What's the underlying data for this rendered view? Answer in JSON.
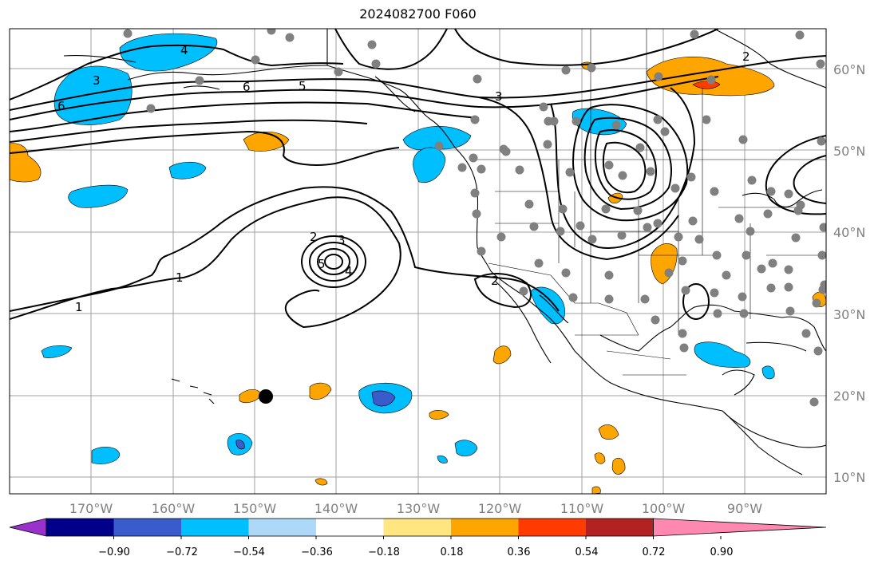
{
  "title": "2024082700 F060",
  "longitude_labels": [
    "170°W",
    "160°W",
    "150°W",
    "140°W",
    "130°W",
    "120°W",
    "110°W",
    "100°W",
    "90°W"
  ],
  "latitude_labels": [
    "60°N",
    "50°N",
    "40°N",
    "30°N",
    "20°N",
    "10°N"
  ],
  "colorbar": {
    "tick_labels": [
      "−0.90",
      "−0.72",
      "−0.54",
      "−0.36",
      "−0.18",
      "0.18",
      "0.36",
      "0.54",
      "0.72",
      "0.90"
    ],
    "colors": [
      "#9932cc",
      "#00008b",
      "#3a5bcc",
      "#00bfff",
      "#add8f7",
      "#ffffff",
      "#ffe680",
      "#ffa500",
      "#ff3b00",
      "#b22222",
      "#ff88b0"
    ]
  },
  "contour_labels": [
    "1",
    "1",
    "2",
    "2",
    "3",
    "3",
    "4",
    "4",
    "5",
    "5",
    "6",
    "6",
    "2",
    "3"
  ],
  "station_marker_color": "#808080",
  "land_outline_color": "#000000",
  "contour_color": "#000000"
}
